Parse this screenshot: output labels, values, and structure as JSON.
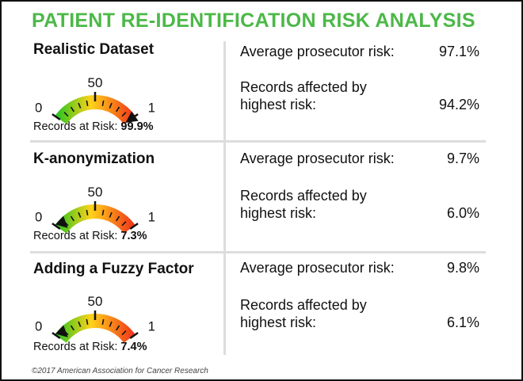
{
  "title": "PATIENT RE-IDENTIFICATION RISK ANALYSIS",
  "colors": {
    "title": "#4cb848",
    "green": "#1fc41f",
    "yellow": "#ffd21a",
    "red": "#f0301a"
  },
  "sections": [
    {
      "name": "Realistic Dataset",
      "gauge_value": 99.9,
      "tick_labels": [
        "0",
        "50",
        "100"
      ],
      "risk_label": "Records at Risk:",
      "risk_value": "99.9%",
      "avg_label": "Average prosecutor risk:",
      "avg_value": "97.1%",
      "affected_label_1": "Records affected by",
      "affected_label_2": "highest risk:",
      "affected_value": "94.2%"
    },
    {
      "name": "K-anonymization",
      "gauge_value": 7.3,
      "tick_labels": [
        "0",
        "50",
        "100"
      ],
      "risk_label": "Records at Risk:",
      "risk_value": "7.3%",
      "avg_label": "Average prosecutor risk:",
      "avg_value": "9.7%",
      "affected_label_1": "Records affected by",
      "affected_label_2": "highest risk:",
      "affected_value": "6.0%"
    },
    {
      "name": "Adding a Fuzzy Factor",
      "gauge_value": 7.4,
      "tick_labels": [
        "0",
        "50",
        "100"
      ],
      "risk_label": "Records at Risk:",
      "risk_value": "7.4%",
      "avg_label": "Average prosecutor risk:",
      "avg_value": "9.8%",
      "affected_label_1": "Records affected by",
      "affected_label_2": "highest risk:",
      "affected_value": "6.1%"
    }
  ],
  "footer": "©2017 American Association for Cancer Research"
}
